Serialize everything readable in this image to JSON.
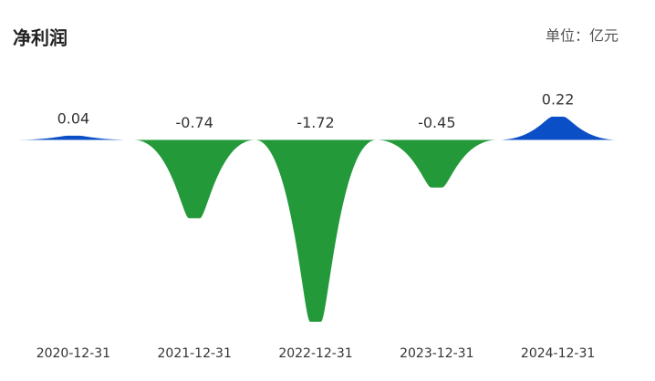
{
  "chart_data": {
    "type": "spike-bar",
    "title": "净利润",
    "unit_label": "单位：亿元",
    "categories": [
      "2020-12-31",
      "2021-12-31",
      "2022-12-31",
      "2023-12-31",
      "2024-12-31"
    ],
    "values": [
      0.04,
      -0.74,
      -1.72,
      -0.45,
      0.22
    ],
    "positive_color": "#0b4fc6",
    "negative_color": "#23993a"
  }
}
